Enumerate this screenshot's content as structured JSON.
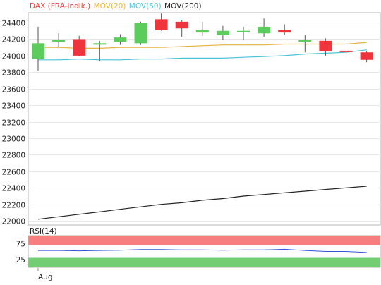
{
  "legend": [
    {
      "label": "DAX (FRA-Indik.)",
      "color": "#e8413b"
    },
    {
      "label": "MOV(20)",
      "color": "#e6b43c"
    },
    {
      "label": "MOV(50)",
      "color": "#4cc3d9"
    },
    {
      "label": "MOV(200)",
      "color": "#222222"
    }
  ],
  "x_tick_label": "Aug",
  "colors": {
    "up": "#5ccc5c",
    "down": "#f0343c",
    "wick": "#555555",
    "grid": "#e6e6e6",
    "frame": "#b4b4b4",
    "rsi_overbought": "#f77e7e",
    "rsi_oversold": "#73cd73",
    "rsi_line": "#3355dd"
  },
  "chart_data": [
    {
      "type": "candlestick",
      "title": "DAX (FRA-Indik.)",
      "ylim": [
        21950,
        24520
      ],
      "yticks": [
        22000,
        22200,
        22400,
        22600,
        22800,
        23000,
        23200,
        23400,
        23600,
        23800,
        24000,
        24200,
        24400
      ],
      "grid": true,
      "candles": [
        {
          "open": 23960,
          "high": 24350,
          "low": 23820,
          "close": 24150
        },
        {
          "open": 24170,
          "high": 24270,
          "low": 24110,
          "close": 24190
        },
        {
          "open": 24200,
          "high": 24240,
          "low": 23990,
          "close": 24000
        },
        {
          "open": 24140,
          "high": 24180,
          "low": 23930,
          "close": 24150
        },
        {
          "open": 24170,
          "high": 24260,
          "low": 24130,
          "close": 24220
        },
        {
          "open": 24150,
          "high": 24410,
          "low": 24130,
          "close": 24400
        },
        {
          "open": 24440,
          "high": 24510,
          "low": 24300,
          "close": 24310
        },
        {
          "open": 24410,
          "high": 24430,
          "low": 24230,
          "close": 24330
        },
        {
          "open": 24280,
          "high": 24410,
          "low": 24240,
          "close": 24310
        },
        {
          "open": 24250,
          "high": 24360,
          "low": 24190,
          "close": 24300
        },
        {
          "open": 24290,
          "high": 24350,
          "low": 24190,
          "close": 24300
        },
        {
          "open": 24270,
          "high": 24450,
          "low": 24230,
          "close": 24350
        },
        {
          "open": 24310,
          "high": 24380,
          "low": 24250,
          "close": 24280
        },
        {
          "open": 24170,
          "high": 24250,
          "low": 24040,
          "close": 24190
        },
        {
          "open": 24180,
          "high": 24210,
          "low": 23990,
          "close": 24050
        },
        {
          "open": 24060,
          "high": 24190,
          "low": 23990,
          "close": 24050
        },
        {
          "open": 24040,
          "high": 24060,
          "low": 23920,
          "close": 23950
        }
      ],
      "mov20": [
        24100,
        24100,
        24090,
        24090,
        24100,
        24100,
        24100,
        24110,
        24120,
        24130,
        24130,
        24130,
        24140,
        24140,
        24140,
        24140,
        24160
      ],
      "mov50": [
        23950,
        23950,
        23960,
        23950,
        23950,
        23960,
        23960,
        23970,
        23970,
        23970,
        23980,
        23990,
        24000,
        24020,
        24030,
        24040,
        24070
      ],
      "mov200": [
        22020,
        22050,
        22080,
        22110,
        22140,
        22170,
        22200,
        22220,
        22250,
        22270,
        22300,
        22320,
        22340,
        22360,
        22380,
        22400,
        22420
      ]
    },
    {
      "type": "line",
      "title": "RSI(14)",
      "ylim": [
        0,
        100
      ],
      "yticks": [
        25,
        75
      ],
      "bands": {
        "overbought": [
          70,
          100
        ],
        "oversold": [
          0,
          30
        ]
      },
      "values": [
        53,
        53,
        52,
        53,
        54,
        56,
        56,
        55,
        55,
        54,
        55,
        55,
        57,
        53,
        50,
        50,
        47
      ]
    }
  ]
}
